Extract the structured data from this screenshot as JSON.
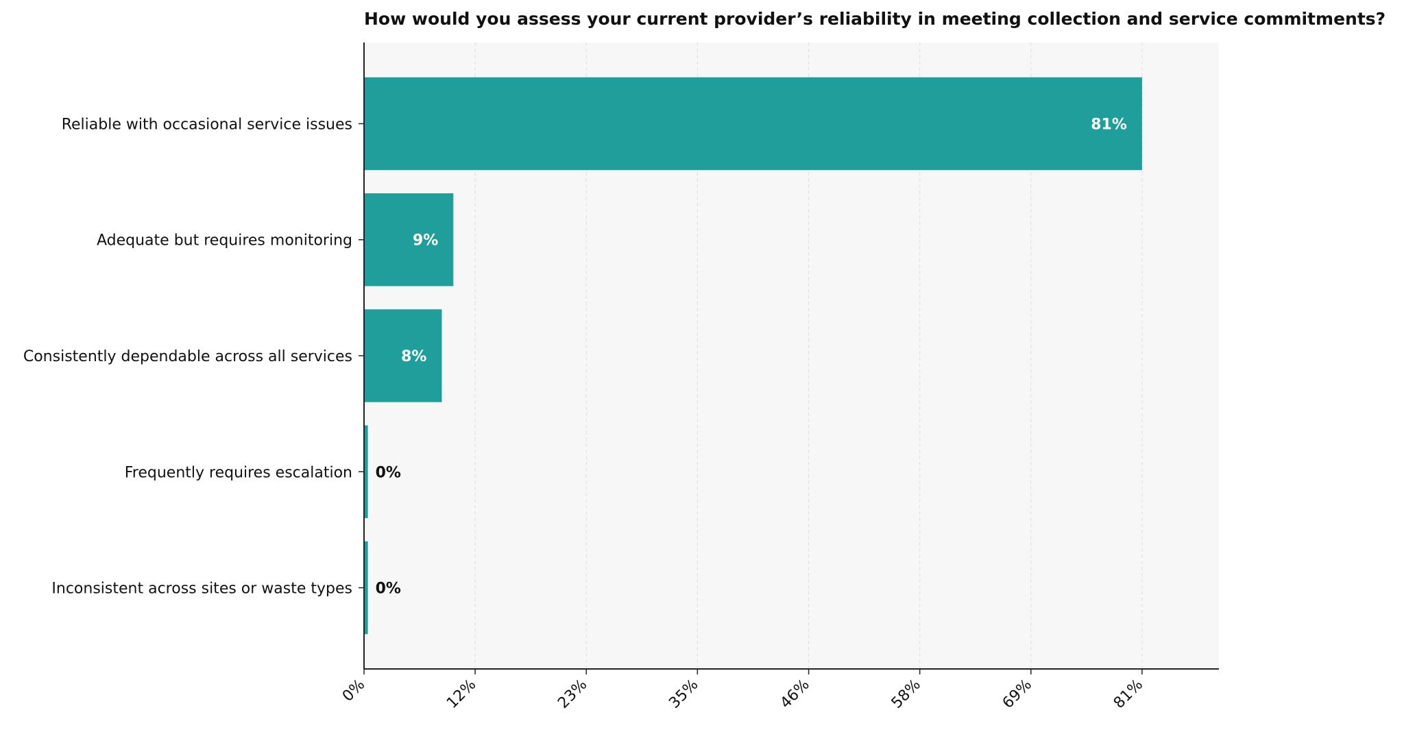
{
  "chart_data": {
    "type": "bar",
    "orientation": "horizontal",
    "title": "How would you assess your current provider’s reliability in meeting collection and service commitments?",
    "xlabel": "",
    "ylabel": "",
    "categories": [
      "Reliable with occasional service issues",
      "Adequate but requires monitoring",
      "Consistently dependable across all services",
      "Frequently requires escalation",
      "Inconsistent across sites or waste types"
    ],
    "values": [
      81,
      9.3,
      8.1,
      0.4,
      0.4
    ],
    "value_labels": [
      "81%",
      "9%",
      "8%",
      "0%",
      "0%"
    ],
    "xlim": [
      0,
      89
    ],
    "xticks": [
      0,
      11.57,
      23.14,
      34.71,
      46.29,
      57.86,
      69.43,
      81.0
    ],
    "xtick_labels": [
      "0%",
      "12%",
      "23%",
      "35%",
      "46%",
      "58%",
      "69%",
      "81%"
    ],
    "grid": "vertical-dashed",
    "legend": "none",
    "colors": {
      "bar": "#1f9e9b",
      "plot_background": "#f7f7f7",
      "grid": "#dddddd",
      "axis": "#222222",
      "label_inside": "#ffffff",
      "label_outside": "#111111"
    }
  }
}
